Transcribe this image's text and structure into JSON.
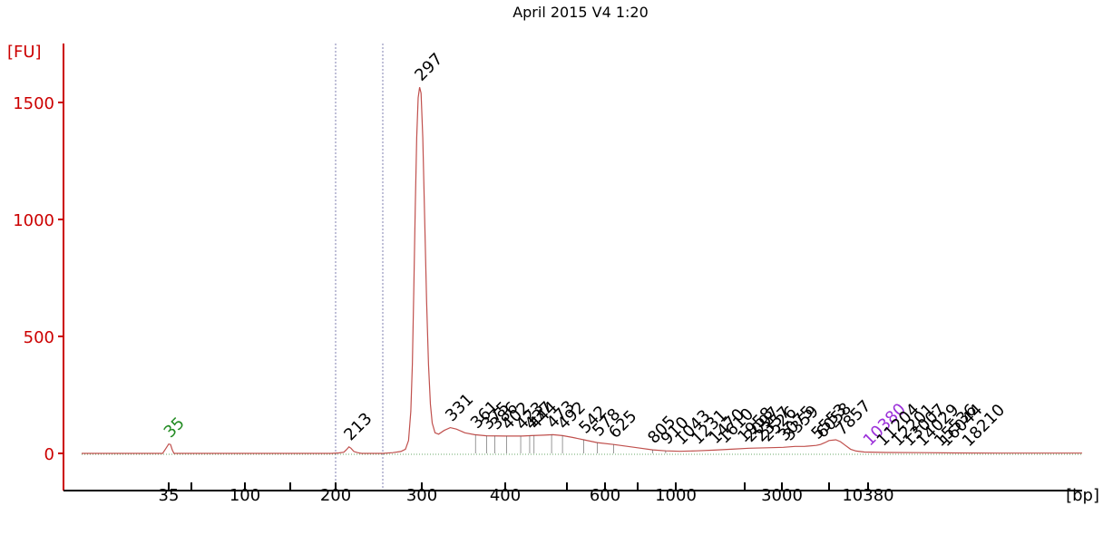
{
  "chart_data": {
    "type": "line",
    "title": "April 2015 V4 1:20",
    "ylabel": "[FU]",
    "xlabel": "[bp]",
    "ylim": [
      -150,
      1750
    ],
    "yticks": [
      0,
      500,
      1000,
      1500
    ],
    "xtick_labels": [
      {
        "label": "35",
        "bp": 35
      },
      {
        "label": "100",
        "bp": 100
      },
      {
        "label": "200",
        "bp": 200
      },
      {
        "label": "300",
        "bp": 300
      },
      {
        "label": "400",
        "bp": 400
      },
      {
        "label": "600",
        "bp": 600
      },
      {
        "label": "1000",
        "bp": 1000
      },
      {
        "label": "3000",
        "bp": 3000
      },
      {
        "label": "10380",
        "bp": 10380
      }
    ],
    "xtick_minor_bp": [
      50,
      150,
      500,
      700,
      2000,
      7000
    ],
    "region_markers_bp": [
      200,
      250
    ],
    "colors": {
      "trace": "#c0504d",
      "axis": "#cc0000",
      "marker_low": "#228b22",
      "marker_high": "#9b30d9",
      "label": "#000000",
      "region": "#8080b0"
    },
    "series": [
      {
        "values": [
          [
            15,
            0
          ],
          [
            33,
            0
          ],
          [
            34,
            20
          ],
          [
            35,
            40
          ],
          [
            36,
            38
          ],
          [
            37,
            15
          ],
          [
            38,
            0
          ],
          [
            195,
            0
          ],
          [
            203,
            2
          ],
          [
            208,
            5
          ],
          [
            211,
            18
          ],
          [
            213,
            28
          ],
          [
            215,
            22
          ],
          [
            218,
            8
          ],
          [
            222,
            3
          ],
          [
            226,
            0
          ],
          [
            250,
            0
          ],
          [
            262,
            3
          ],
          [
            272,
            8
          ],
          [
            278,
            18
          ],
          [
            282,
            55
          ],
          [
            285,
            180
          ],
          [
            287,
            380
          ],
          [
            289,
            700
          ],
          [
            291,
            1050
          ],
          [
            293,
            1350
          ],
          [
            295,
            1520
          ],
          [
            297,
            1565
          ],
          [
            299,
            1540
          ],
          [
            301,
            1350
          ],
          [
            303,
            1000
          ],
          [
            305,
            650
          ],
          [
            307,
            380
          ],
          [
            309,
            210
          ],
          [
            311,
            130
          ],
          [
            314,
            88
          ],
          [
            318,
            82
          ],
          [
            324,
            98
          ],
          [
            331,
            110
          ],
          [
            338,
            104
          ],
          [
            348,
            88
          ],
          [
            360,
            80
          ],
          [
            375,
            75
          ],
          [
            400,
            74
          ],
          [
            425,
            74
          ],
          [
            440,
            76
          ],
          [
            460,
            78
          ],
          [
            475,
            80
          ],
          [
            492,
            76
          ],
          [
            515,
            68
          ],
          [
            542,
            58
          ],
          [
            578,
            46
          ],
          [
            625,
            38
          ],
          [
            700,
            24
          ],
          [
            805,
            15
          ],
          [
            910,
            11
          ],
          [
            1043,
            9
          ],
          [
            1231,
            11
          ],
          [
            1470,
            14
          ],
          [
            1750,
            18
          ],
          [
            2097,
            22
          ],
          [
            2550,
            24
          ],
          [
            3075,
            26
          ],
          [
            3800,
            30
          ],
          [
            4500,
            30
          ],
          [
            5553,
            34
          ],
          [
            6000,
            38
          ],
          [
            6500,
            46
          ],
          [
            7000,
            55
          ],
          [
            7500,
            58
          ],
          [
            7857,
            50
          ],
          [
            8200,
            36
          ],
          [
            8700,
            18
          ],
          [
            9200,
            10
          ],
          [
            10000,
            6
          ],
          [
            11500,
            4
          ],
          [
            14000,
            3
          ],
          [
            17000,
            2
          ],
          [
            22000,
            1
          ],
          [
            35000,
            1
          ]
        ]
      }
    ],
    "peak_labels": [
      {
        "label": "35",
        "bp": 35,
        "color": "marker_low"
      },
      {
        "label": "213",
        "bp": 213
      },
      {
        "label": "297",
        "bp": 297
      },
      {
        "label": "331",
        "bp": 331
      },
      {
        "label": "361",
        "bp": 361
      },
      {
        "label": "375",
        "bp": 375
      },
      {
        "label": "386",
        "bp": 386
      },
      {
        "label": "402",
        "bp": 402
      },
      {
        "label": "423",
        "bp": 423
      },
      {
        "label": "437",
        "bp": 437
      },
      {
        "label": "444",
        "bp": 444
      },
      {
        "label": "473",
        "bp": 473
      },
      {
        "label": "492",
        "bp": 492
      },
      {
        "label": "542",
        "bp": 542
      },
      {
        "label": "578",
        "bp": 578
      },
      {
        "label": "625",
        "bp": 625
      },
      {
        "label": "805",
        "bp": 805
      },
      {
        "label": "910",
        "bp": 910
      },
      {
        "label": "1043",
        "bp": 1043
      },
      {
        "label": "1231",
        "bp": 1231
      },
      {
        "label": "1470",
        "bp": 1470
      },
      {
        "label": "1610",
        "bp": 1610
      },
      {
        "label": "1958",
        "bp": 1958
      },
      {
        "label": "2097",
        "bp": 2097
      },
      {
        "label": "2357",
        "bp": 2357
      },
      {
        "label": "2526",
        "bp": 2526
      },
      {
        "label": "3075",
        "bp": 3075
      },
      {
        "label": "3359",
        "bp": 3359
      },
      {
        "label": "5553",
        "bp": 5553
      },
      {
        "label": "6058",
        "bp": 6058
      },
      {
        "label": "7857",
        "bp": 7857
      },
      {
        "label": "10380",
        "bp": 10380,
        "color": "marker_high"
      },
      {
        "label": "11204",
        "bp": 11204
      },
      {
        "label": "12201",
        "bp": 12201
      },
      {
        "label": "13007",
        "bp": 13007
      },
      {
        "label": "14029",
        "bp": 14029
      },
      {
        "label": "15536",
        "bp": 15536
      },
      {
        "label": "16044",
        "bp": 16044
      },
      {
        "label": "18210",
        "bp": 18210
      }
    ]
  }
}
